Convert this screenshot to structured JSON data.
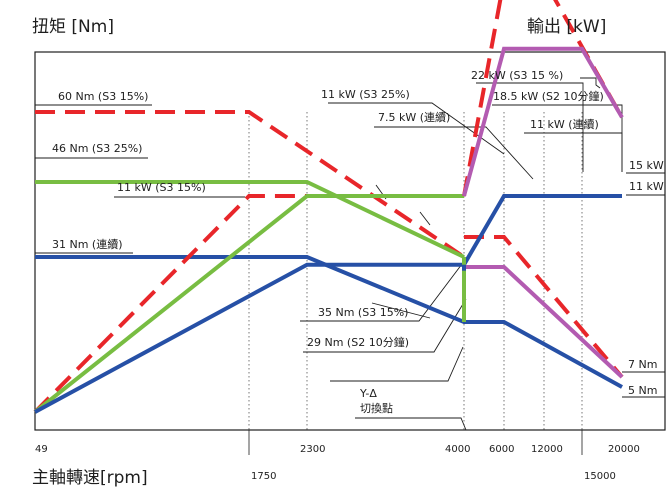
{
  "chart_data": {
    "type": "line",
    "title": "",
    "ylabel_left": "扭矩 [Nm]",
    "ylabel_right": "輸出 [kW]",
    "xlabel": "主軸轉速[rpm]",
    "x_scale": "piecewise (non-linear)",
    "x_ticks": [
      "49",
      "1750",
      "2300",
      "4000",
      "6000",
      "12000",
      "15000",
      "20000"
    ],
    "grid": "dotted vertical lines",
    "colors": {
      "s3_15": "#e8262a",
      "s3_25": "#78bd42",
      "s2_10": "#b35bb1",
      "continuous": "#2650a6"
    },
    "series": [
      {
        "name": "60 Nm (S3 15%)",
        "style": "dashed",
        "color": "#e8262a",
        "kind": "torque",
        "points": [
          [
            49,
            60
          ],
          [
            1750,
            60
          ],
          [
            4000,
            31
          ]
        ]
      },
      {
        "name": "46 Nm (S3 25%)",
        "style": "solid",
        "color": "#78bd42",
        "kind": "torque",
        "points": [
          [
            49,
            46
          ],
          [
            2300,
            46
          ],
          [
            4000,
            31
          ]
        ]
      },
      {
        "name": "31 Nm (連續)",
        "style": "solid",
        "color": "#2650a6",
        "kind": "torque",
        "points": [
          [
            49,
            31
          ],
          [
            2300,
            31
          ],
          [
            4000,
            18
          ],
          [
            6000,
            18
          ],
          [
            20000,
            5
          ]
        ]
      },
      {
        "name": "35 Nm (S3 15%)",
        "style": "dashed",
        "color": "#e8262a",
        "kind": "torque",
        "points": [
          [
            4000,
            35
          ],
          [
            6000,
            35
          ],
          [
            20000,
            7
          ]
        ]
      },
      {
        "name": "29 Nm (S2 10分鐘)",
        "style": "solid",
        "color": "#b35bb1",
        "kind": "torque",
        "points": [
          [
            4000,
            29
          ],
          [
            6000,
            29
          ],
          [
            20000,
            7
          ]
        ]
      },
      {
        "name": "11 kW (S3 15%)",
        "style": "dashed",
        "color": "#e8262a",
        "kind": "power",
        "points": [
          [
            49,
            0
          ],
          [
            1750,
            11
          ],
          [
            4000,
            11
          ]
        ]
      },
      {
        "name": "11 kW (S3 25%)",
        "style": "solid",
        "color": "#78bd42",
        "kind": "power",
        "points": [
          [
            49,
            0
          ],
          [
            2300,
            11
          ],
          [
            4000,
            11
          ]
        ]
      },
      {
        "name": "7.5 kW (連續)",
        "style": "solid",
        "color": "#2650a6",
        "kind": "power",
        "points": [
          [
            49,
            0
          ],
          [
            2300,
            7.5
          ],
          [
            4000,
            7.5
          ]
        ]
      },
      {
        "name": "22 kW (S3 15 %)",
        "style": "dashed",
        "color": "#e8262a",
        "kind": "power",
        "points": [
          [
            4000,
            11
          ],
          [
            6000,
            22
          ],
          [
            12000,
            22
          ],
          [
            20000,
            15
          ]
        ]
      },
      {
        "name": "18.5 kW (S2 10分鐘)",
        "style": "solid",
        "color": "#b35bb1",
        "kind": "power",
        "points": [
          [
            4000,
            11
          ],
          [
            6000,
            18.5
          ],
          [
            15000,
            18.5
          ],
          [
            20000,
            15
          ]
        ]
      },
      {
        "name": "11 kW (連續)",
        "style": "solid",
        "color": "#2650a6",
        "kind": "power",
        "points": [
          [
            4000,
            7.5
          ],
          [
            6000,
            11
          ],
          [
            20000,
            11
          ]
        ]
      }
    ],
    "right_labels": [
      "15 kW",
      "11 kW",
      "7 Nm",
      "5 Nm"
    ],
    "annotation_yd": [
      "Y-Δ",
      "切換點"
    ]
  }
}
